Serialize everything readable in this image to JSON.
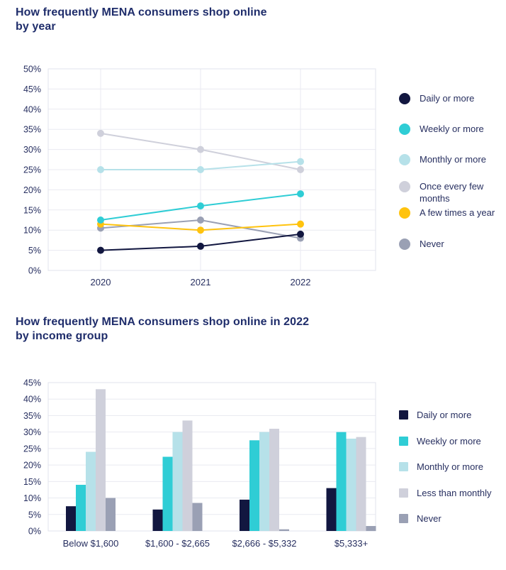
{
  "page": {
    "background": "#ffffff"
  },
  "colors": {
    "title_text": "#1f2d6b",
    "axis_text": "#272f60",
    "gridline": "#e9eaf1",
    "plot_border": "#e2e3ec",
    "daily_navy": "#121740",
    "weekly_cyan": "#2fcdd5",
    "monthly_lightblue": "#b6e1e9",
    "once_lightgray": "#cfd0db",
    "few_times_yellow": "#ffc30e",
    "never_gray": "#9aa0b4"
  },
  "sections": [
    {
      "title_line1": "How frequently MENA consumers shop online",
      "title_line2": "by year"
    },
    {
      "title_line1": "How frequently MENA consumers shop online in 2022",
      "title_line2": "by income group"
    }
  ],
  "chart_data": [
    {
      "type": "line",
      "title": "How frequently MENA consumers shop online by year",
      "categories": [
        "2020",
        "2021",
        "2022"
      ],
      "series": [
        {
          "name": "Daily or more",
          "color": "#121740",
          "values": [
            5,
            6,
            9
          ]
        },
        {
          "name": "Weekly or more",
          "color": "#2fcdd5",
          "values": [
            12.5,
            16,
            19
          ]
        },
        {
          "name": "Monthly or more",
          "color": "#b6e1e9",
          "values": [
            25,
            25,
            27
          ]
        },
        {
          "name": "Once every few months",
          "color": "#cfd0db",
          "values": [
            34,
            30,
            25
          ]
        },
        {
          "name": "A few times a year",
          "color": "#ffc30e",
          "values": [
            11.5,
            10,
            11.5
          ]
        },
        {
          "name": "Never",
          "color": "#9aa0b4",
          "values": [
            10.5,
            12.5,
            8
          ]
        }
      ],
      "ylim": [
        0,
        50
      ],
      "ytick_step": 5,
      "yticklabels": [
        "0%",
        "5%",
        "10%",
        "15%",
        "20%",
        "25%",
        "30%",
        "35%",
        "40%",
        "45%",
        "50%"
      ],
      "grid": true,
      "vertical_guides": true,
      "legend_position": "right",
      "legend_marker": "circle"
    },
    {
      "type": "bar",
      "title": "How frequently MENA consumers shop online in 2022 by income group",
      "categories": [
        "Below $1,600",
        "$1,600 - $2,665",
        "$2,666 - $5,332",
        "$5,333+"
      ],
      "series": [
        {
          "name": "Daily or more",
          "color": "#121740",
          "values": [
            7.5,
            6.5,
            9.5,
            13
          ]
        },
        {
          "name": "Weekly or more",
          "color": "#2fcdd5",
          "values": [
            14,
            22.5,
            27.5,
            30
          ]
        },
        {
          "name": "Monthly or more",
          "color": "#b6e1e9",
          "values": [
            24,
            30,
            30,
            28
          ]
        },
        {
          "name": "Less than monthly",
          "color": "#cfd0db",
          "values": [
            43,
            33.5,
            31,
            28.5
          ]
        },
        {
          "name": "Never",
          "color": "#9aa0b4",
          "values": [
            10,
            8.5,
            0.5,
            1.5
          ]
        }
      ],
      "ylim": [
        0,
        45
      ],
      "ytick_step": 5,
      "yticklabels": [
        "0%",
        "5%",
        "10%",
        "15%",
        "20%",
        "25%",
        "30%",
        "35%",
        "40%",
        "45%"
      ],
      "grid": true,
      "vertical_guides": false,
      "legend_position": "right",
      "legend_marker": "square"
    }
  ]
}
